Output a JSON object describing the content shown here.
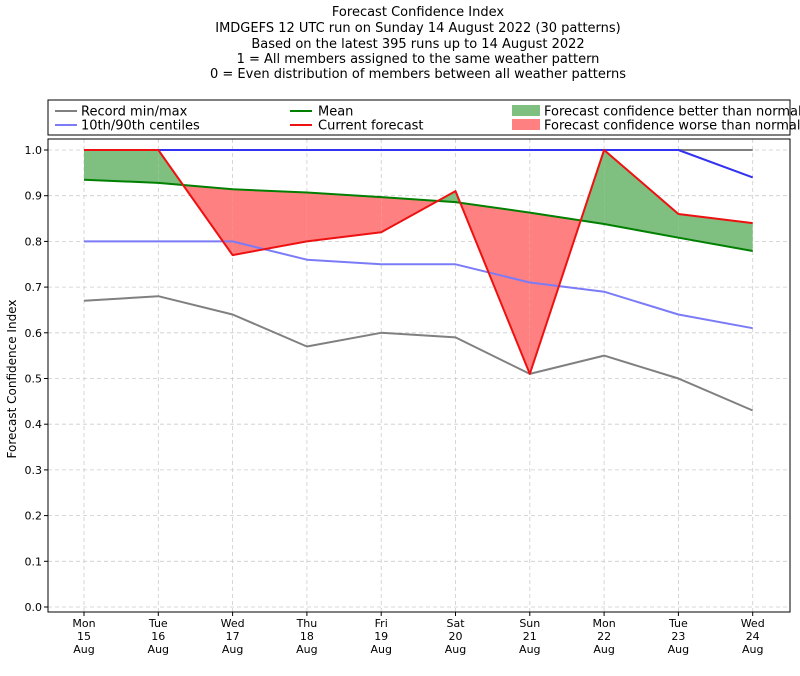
{
  "chart_data": {
    "type": "line",
    "title_lines": [
      "Forecast Confidence Index",
      "IMDGEFS 12 UTC run on Sunday 14 August 2022 (30 patterns)",
      "Based on the latest 395 runs up to 14 August 2022",
      "1 = All members assigned to the same weather pattern",
      "0 = Even distribution of members between all weather patterns"
    ],
    "ylabel": "Forecast Confidence Index",
    "ylim": [
      0,
      1.0
    ],
    "yticks": [
      "0.0",
      "0.1",
      "0.2",
      "0.3",
      "0.4",
      "0.5",
      "0.6",
      "0.7",
      "0.8",
      "0.9",
      "1.0"
    ],
    "categories": [
      [
        "Mon",
        "15",
        "Aug"
      ],
      [
        "Tue",
        "16",
        "Aug"
      ],
      [
        "Wed",
        "17",
        "Aug"
      ],
      [
        "Thu",
        "18",
        "Aug"
      ],
      [
        "Fri",
        "19",
        "Aug"
      ],
      [
        "Sat",
        "20",
        "Aug"
      ],
      [
        "Sun",
        "21",
        "Aug"
      ],
      [
        "Mon",
        "22",
        "Aug"
      ],
      [
        "Tue",
        "23",
        "Aug"
      ],
      [
        "Wed",
        "24",
        "Aug"
      ]
    ],
    "grid": true,
    "legend_position": "top",
    "series": {
      "record_min": [
        0.67,
        0.68,
        0.64,
        0.57,
        0.6,
        0.59,
        0.51,
        0.55,
        0.5,
        0.43
      ],
      "record_max": [
        1.0,
        1.0,
        1.0,
        1.0,
        1.0,
        1.0,
        1.0,
        1.0,
        1.0,
        1.0
      ],
      "p10": [
        0.8,
        0.8,
        0.8,
        0.76,
        0.75,
        0.75,
        0.71,
        0.69,
        0.64,
        0.61
      ],
      "p90": [
        1.0,
        1.0,
        1.0,
        1.0,
        1.0,
        1.0,
        1.0,
        1.0,
        1.0,
        0.94
      ],
      "mean": [
        0.935,
        0.928,
        0.914,
        0.907,
        0.897,
        0.886,
        0.863,
        0.838,
        0.808,
        0.779
      ],
      "current": [
        1.0,
        1.0,
        0.77,
        0.8,
        0.82,
        0.91,
        0.51,
        1.0,
        0.86,
        0.84
      ]
    },
    "legend": {
      "record": "Record min/max",
      "centiles": "10th/90th centiles",
      "mean": "Mean",
      "current": "Current forecast",
      "better": "Forecast confidence better than normal",
      "worse": "Forecast confidence worse than normal"
    },
    "colors": {
      "record": "#808080",
      "centiles": "#7b7bf7",
      "centiles_top": "#3232f0",
      "mean": "#008000",
      "current": "#ee1111",
      "better": "#7fbf7f",
      "worse": "#ff8080",
      "grid": "#cccccc"
    }
  }
}
